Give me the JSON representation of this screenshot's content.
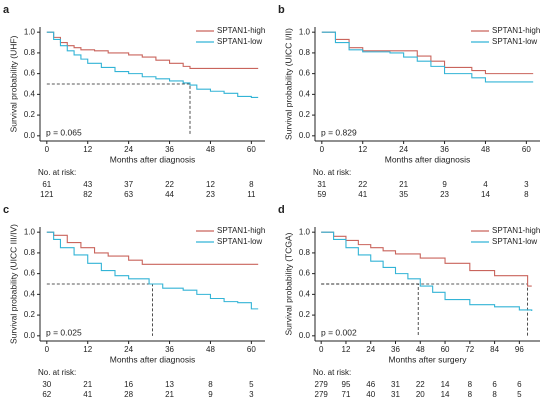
{
  "chart_data": [
    {
      "type": "line",
      "panel": "a",
      "ylabel": "Survival probability (UHF)",
      "xlabel": "Months after diagnosis",
      "annotation": "p = 0.065",
      "at_risk_label": "No. at risk:",
      "xlim": [
        -2,
        64
      ],
      "xticks": [
        0,
        12,
        24,
        36,
        48,
        60
      ],
      "ylim": [
        -0.05,
        1.05
      ],
      "yticks": [
        {
          "value": 0,
          "label": "0.0"
        },
        0.2,
        0.4,
        0.6,
        0.8,
        {
          "value": 1,
          "label": "1.0"
        }
      ],
      "reference_lines": [
        {
          "x": 42,
          "y": 0.5
        }
      ],
      "series": [
        {
          "name": "SPTAN1-high",
          "color": "#c9645c",
          "x": [
            0,
            2,
            4,
            6,
            8,
            10,
            14,
            18,
            24,
            28,
            32,
            36,
            40,
            42,
            62
          ],
          "values": [
            1,
            0.95,
            0.9,
            0.87,
            0.85,
            0.83,
            0.82,
            0.8,
            0.78,
            0.76,
            0.73,
            0.7,
            0.67,
            0.65,
            0.65
          ],
          "at_risk": [
            61,
            43,
            37,
            22,
            12,
            8
          ]
        },
        {
          "name": "SPTAN1-low",
          "color": "#33b4d6",
          "x": [
            0,
            2,
            4,
            6,
            8,
            10,
            12,
            16,
            20,
            24,
            28,
            32,
            36,
            40,
            42,
            44,
            48,
            52,
            56,
            60,
            62
          ],
          "values": [
            1,
            0.93,
            0.87,
            0.82,
            0.78,
            0.74,
            0.7,
            0.66,
            0.62,
            0.6,
            0.57,
            0.55,
            0.53,
            0.51,
            0.49,
            0.45,
            0.43,
            0.41,
            0.38,
            0.37,
            0.37
          ],
          "at_risk": [
            121,
            82,
            63,
            44,
            23,
            11
          ]
        }
      ]
    },
    {
      "type": "line",
      "panel": "b",
      "ylabel": "Survival probability (UICC I/II)",
      "xlabel": "Months after diagnosis",
      "annotation": "p = 0.829",
      "at_risk_label": "No. at risk:",
      "xlim": [
        -2,
        64
      ],
      "xticks": [
        0,
        12,
        24,
        36,
        48,
        60
      ],
      "ylim": [
        -0.05,
        1.05
      ],
      "yticks": [
        {
          "value": 0,
          "label": "0.0"
        },
        0.2,
        0.4,
        0.6,
        0.8,
        {
          "value": 1,
          "label": "1.0"
        }
      ],
      "reference_lines": [],
      "series": [
        {
          "name": "SPTAN1-high",
          "color": "#c9645c",
          "x": [
            0,
            4,
            8,
            12,
            20,
            28,
            32,
            36,
            44,
            48,
            62
          ],
          "values": [
            1,
            0.93,
            0.85,
            0.82,
            0.82,
            0.77,
            0.72,
            0.66,
            0.63,
            0.6,
            0.6
          ],
          "at_risk": [
            31,
            22,
            21,
            9,
            4,
            3
          ]
        },
        {
          "name": "SPTAN1-low",
          "color": "#33b4d6",
          "x": [
            0,
            4,
            8,
            12,
            20,
            24,
            28,
            32,
            36,
            44,
            48,
            62
          ],
          "values": [
            1,
            0.9,
            0.83,
            0.81,
            0.8,
            0.76,
            0.72,
            0.67,
            0.6,
            0.56,
            0.52,
            0.52
          ],
          "at_risk": [
            59,
            41,
            35,
            23,
            14,
            8
          ]
        }
      ]
    },
    {
      "type": "line",
      "panel": "c",
      "ylabel": "Survival probability (UICC III/IV)",
      "xlabel": "Months after diagnosis",
      "annotation": "p = 0.025",
      "at_risk_label": "No. at risk:",
      "xlim": [
        -2,
        64
      ],
      "xticks": [
        0,
        12,
        24,
        36,
        48,
        60
      ],
      "ylim": [
        -0.05,
        1.05
      ],
      "yticks": [
        {
          "value": 0,
          "label": "0.0"
        },
        0.2,
        0.4,
        0.6,
        0.8,
        {
          "value": 1,
          "label": "1.0"
        }
      ],
      "reference_lines": [
        {
          "x": 31,
          "y": 0.5
        }
      ],
      "series": [
        {
          "name": "SPTAN1-high",
          "color": "#c9645c",
          "x": [
            0,
            2,
            6,
            10,
            14,
            18,
            24,
            28,
            62
          ],
          "values": [
            1,
            0.97,
            0.9,
            0.85,
            0.8,
            0.77,
            0.73,
            0.69,
            0.69
          ],
          "at_risk": [
            30,
            21,
            16,
            13,
            8,
            5
          ]
        },
        {
          "name": "SPTAN1-low",
          "color": "#33b4d6",
          "x": [
            0,
            2,
            4,
            8,
            12,
            16,
            20,
            24,
            30,
            34,
            40,
            44,
            48,
            52,
            56,
            60,
            62
          ],
          "values": [
            1,
            0.93,
            0.85,
            0.78,
            0.7,
            0.63,
            0.58,
            0.55,
            0.5,
            0.46,
            0.44,
            0.4,
            0.36,
            0.33,
            0.32,
            0.26,
            0.26
          ],
          "at_risk": [
            62,
            41,
            28,
            21,
            9,
            3
          ]
        }
      ]
    },
    {
      "type": "line",
      "panel": "d",
      "ylabel": "Survival probability (TCGA)",
      "xlabel": "Months after surgery",
      "annotation": "p = 0.002",
      "at_risk_label": "No. at risk:",
      "xlim": [
        -3,
        106
      ],
      "xticks": [
        0,
        12,
        24,
        36,
        48,
        60,
        72,
        84,
        96
      ],
      "ylim": [
        -0.05,
        1.05
      ],
      "yticks": [
        {
          "value": 0,
          "label": "0.0"
        },
        0.2,
        0.4,
        0.6,
        0.8,
        {
          "value": 1,
          "label": "1.0"
        }
      ],
      "reference_lines": [
        {
          "x": 47,
          "y": 0.5
        },
        {
          "x": 100,
          "y": 0.5
        }
      ],
      "series": [
        {
          "name": "SPTAN1-high",
          "color": "#c9645c",
          "x": [
            0,
            6,
            12,
            18,
            24,
            30,
            36,
            48,
            60,
            72,
            84,
            96,
            100,
            102
          ],
          "values": [
            1,
            0.96,
            0.92,
            0.88,
            0.85,
            0.82,
            0.79,
            0.75,
            0.7,
            0.63,
            0.58,
            0.58,
            0.48,
            0.48
          ],
          "at_risk": [
            279,
            95,
            46,
            31,
            22,
            14,
            8,
            6,
            6
          ]
        },
        {
          "name": "SPTAN1-low",
          "color": "#33b4d6",
          "x": [
            0,
            6,
            12,
            18,
            24,
            30,
            36,
            42,
            48,
            54,
            60,
            72,
            84,
            96,
            102
          ],
          "values": [
            1,
            0.93,
            0.85,
            0.78,
            0.72,
            0.66,
            0.6,
            0.55,
            0.48,
            0.42,
            0.35,
            0.3,
            0.28,
            0.25,
            0.24
          ],
          "at_risk": [
            279,
            71,
            40,
            31,
            20,
            14,
            8,
            8,
            5
          ]
        }
      ]
    }
  ]
}
